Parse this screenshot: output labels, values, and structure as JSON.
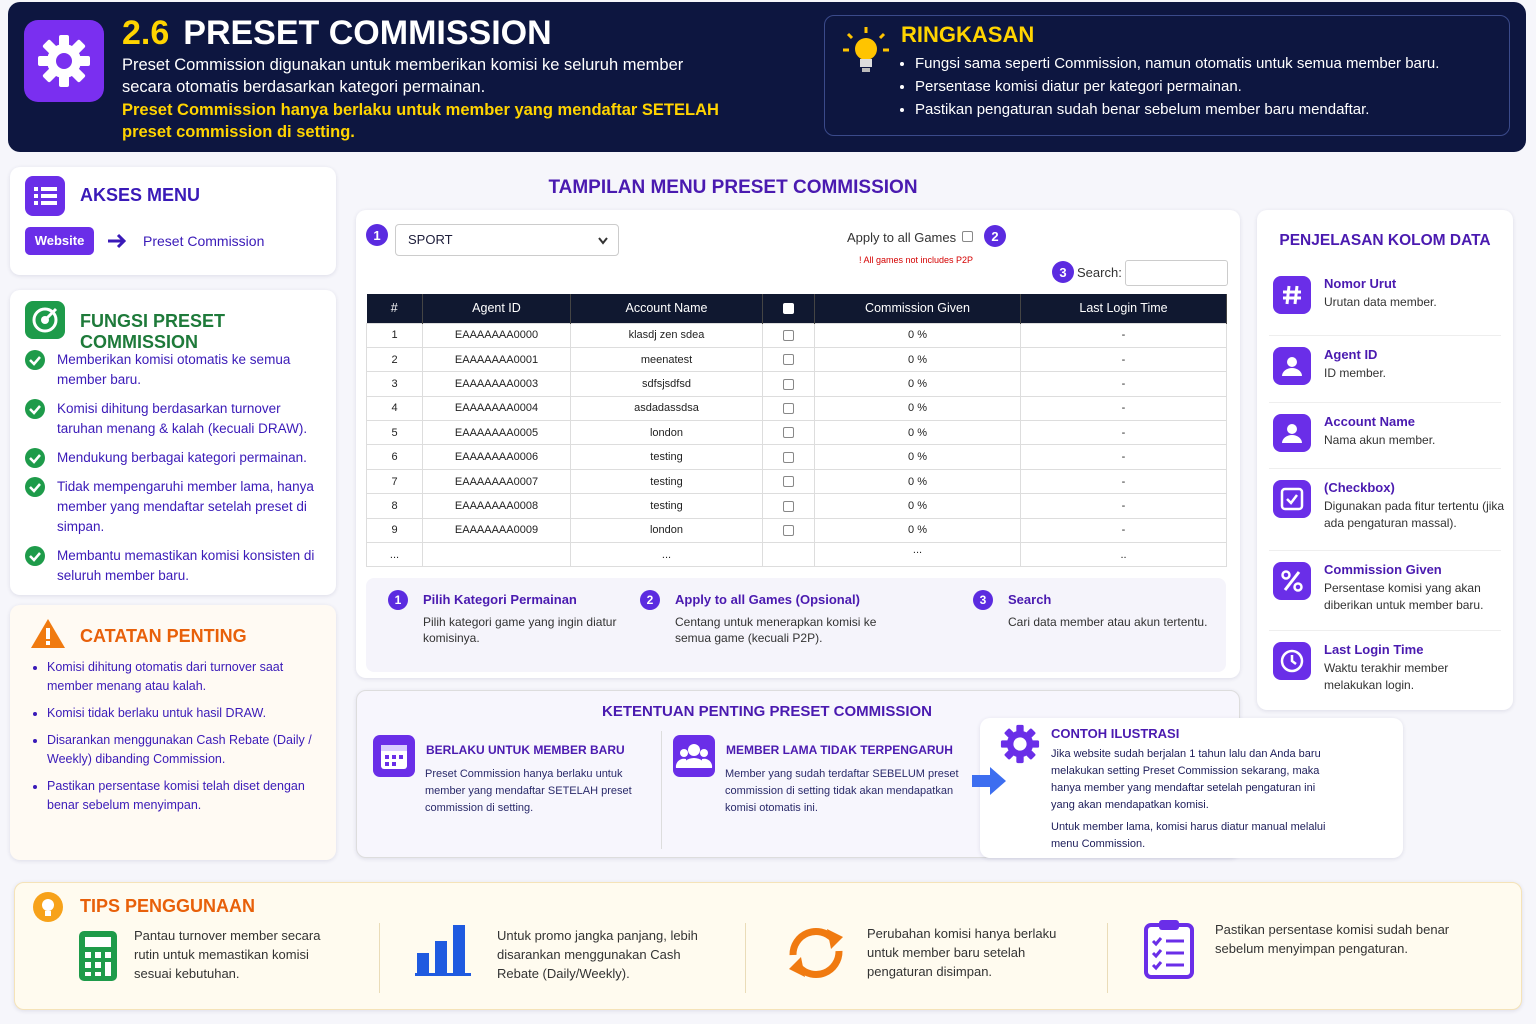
{
  "header": {
    "number": "2.6",
    "title": "PRESET COMMISSION",
    "description": "Preset Commission digunakan untuk memberikan komisi ke seluruh member secara otomatis berdasarkan kategori permainan.",
    "note": "Preset Commission hanya berlaku untuk member yang mendaftar SETELAH preset commission di setting."
  },
  "summary": {
    "title": "RINGKASAN",
    "items": [
      "Fungsi sama seperti Commission, namun otomatis untuk semua member baru.",
      "Persentase komisi diatur per kategori permainan.",
      "Pastikan pengaturan sudah benar sebelum member baru mendaftar."
    ]
  },
  "access": {
    "title": "AKSES MENU",
    "button": "Website",
    "link": "Preset Commission"
  },
  "functions": {
    "title": "FUNGSI PRESET COMMISSION",
    "items": [
      "Memberikan komisi otomatis ke semua member baru.",
      "Komisi dihitung berdasarkan turnover taruhan menang & kalah (kecuali DRAW).",
      "Mendukung berbagai kategori permainan.",
      "Tidak mempengaruhi member lama, hanya member yang mendaftar setelah preset di simpan.",
      "Membantu memastikan komisi konsisten di seluruh member baru."
    ]
  },
  "notes": {
    "title": "CATATAN PENTING",
    "items": [
      "Komisi dihitung otomatis dari turnover saat member menang atau kalah.",
      "Komisi tidak berlaku untuk hasil DRAW.",
      "Disarankan menggunakan Cash Rebate (Daily / Weekly) dibanding Commission.",
      "Pastikan persentase komisi telah diset dengan benar sebelum menyimpan."
    ]
  },
  "preview": {
    "title": "TAMPILAN MENU PRESET COMMISSION",
    "markers": [
      "1",
      "2",
      "3"
    ],
    "select": "SPORT",
    "apply": "Apply to all Games",
    "warning": "! All games not includes P2P",
    "search": "Search:",
    "table": {
      "headers": [
        "#",
        "Agent ID",
        "Account Name",
        "Commission Given",
        "Last Login Time"
      ],
      "rows": [
        [
          "1",
          "EAAAAAAA0000",
          "klasdj zen sdea",
          "0 %",
          "-"
        ],
        [
          "2",
          "EAAAAAAA0001",
          "meenatest",
          "0 %",
          "-"
        ],
        [
          "3",
          "EAAAAAAA0003",
          "sdfsjsdfsd",
          "0 %",
          "-"
        ],
        [
          "4",
          "EAAAAAAA0004",
          "asdadassdsa",
          "0 %",
          "-"
        ],
        [
          "5",
          "EAAAAAAA0005",
          "london",
          "0 %",
          "-"
        ],
        [
          "6",
          "EAAAAAAA0006",
          "testing",
          "0 %",
          "-"
        ],
        [
          "7",
          "EAAAAAAA0007",
          "testing",
          "0 %",
          "-"
        ],
        [
          "8",
          "EAAAAAAA0008",
          "testing",
          "0 %",
          "-"
        ],
        [
          "9",
          "EAAAAAAA0009",
          "london",
          "0 %",
          "-"
        ],
        [
          "...",
          null,
          "...",
          "...",
          ".."
        ]
      ]
    },
    "steps": [
      {
        "number": "1",
        "title": "Pilih Kategori Permainan",
        "text": "Pilih kategori game yang ingin diatur komisinya."
      },
      {
        "number": "2",
        "title": "Apply to all Games (Opsional)",
        "text": "Centang untuk menerapkan komisi ke semua game (kecuali P2P)."
      },
      {
        "number": "3",
        "title": "Search",
        "text": "Cari data member atau akun tertentu."
      }
    ]
  },
  "rules": {
    "title": "KETENTUAN PENTING PRESET COMMISSION",
    "cards": [
      {
        "title": "BERLAKU UNTUK MEMBER BARU",
        "text": "Preset Commission hanya berlaku untuk member yang mendaftar SETELAH preset commission di setting."
      },
      {
        "title": "MEMBER LAMA TIDAK TERPENGARUH",
        "text": "Member yang sudah terdaftar SEBELUM preset commission di setting tidak akan mendapatkan komisi otomatis ini."
      }
    ],
    "example": {
      "title": "CONTOH ILUSTRASI",
      "text1": "Jika website sudah berjalan 1 tahun lalu dan Anda baru melakukan setting Preset Commission sekarang, maka hanya member yang mendaftar setelah pengaturan ini yang akan mendapatkan komisi.",
      "text2": "Untuk member lama, komisi harus diatur manual melalui menu Commission."
    }
  },
  "columns": {
    "title": "PENJELASAN KOLOM DATA",
    "items": [
      {
        "name": "Nomor Urut",
        "desc": "Urutan data member."
      },
      {
        "name": "Agent ID",
        "desc": "ID member."
      },
      {
        "name": "Account Name",
        "desc": "Nama akun member."
      },
      {
        "name": "(Checkbox)",
        "desc": "Digunakan pada fitur tertentu (jika ada pengaturan massal)."
      },
      {
        "name": "Commission Given",
        "desc": "Persentase komisi yang akan diberikan untuk member baru."
      },
      {
        "name": "Last Login Time",
        "desc": "Waktu terakhir member melakukan login."
      }
    ]
  },
  "tips": {
    "title": "TIPS PENGGUNAAN",
    "items": [
      "Pantau turnover member secara rutin untuk memastikan komisi sesuai kebutuhan.",
      "Untuk promo jangka panjang, lebih disarankan menggunakan Cash Rebate (Daily/Weekly).",
      "Perubahan komisi hanya berlaku untuk member baru setelah pengaturan disimpan.",
      "Pastikan persentase komisi sudah benar sebelum menyimpan pengaturan."
    ]
  }
}
